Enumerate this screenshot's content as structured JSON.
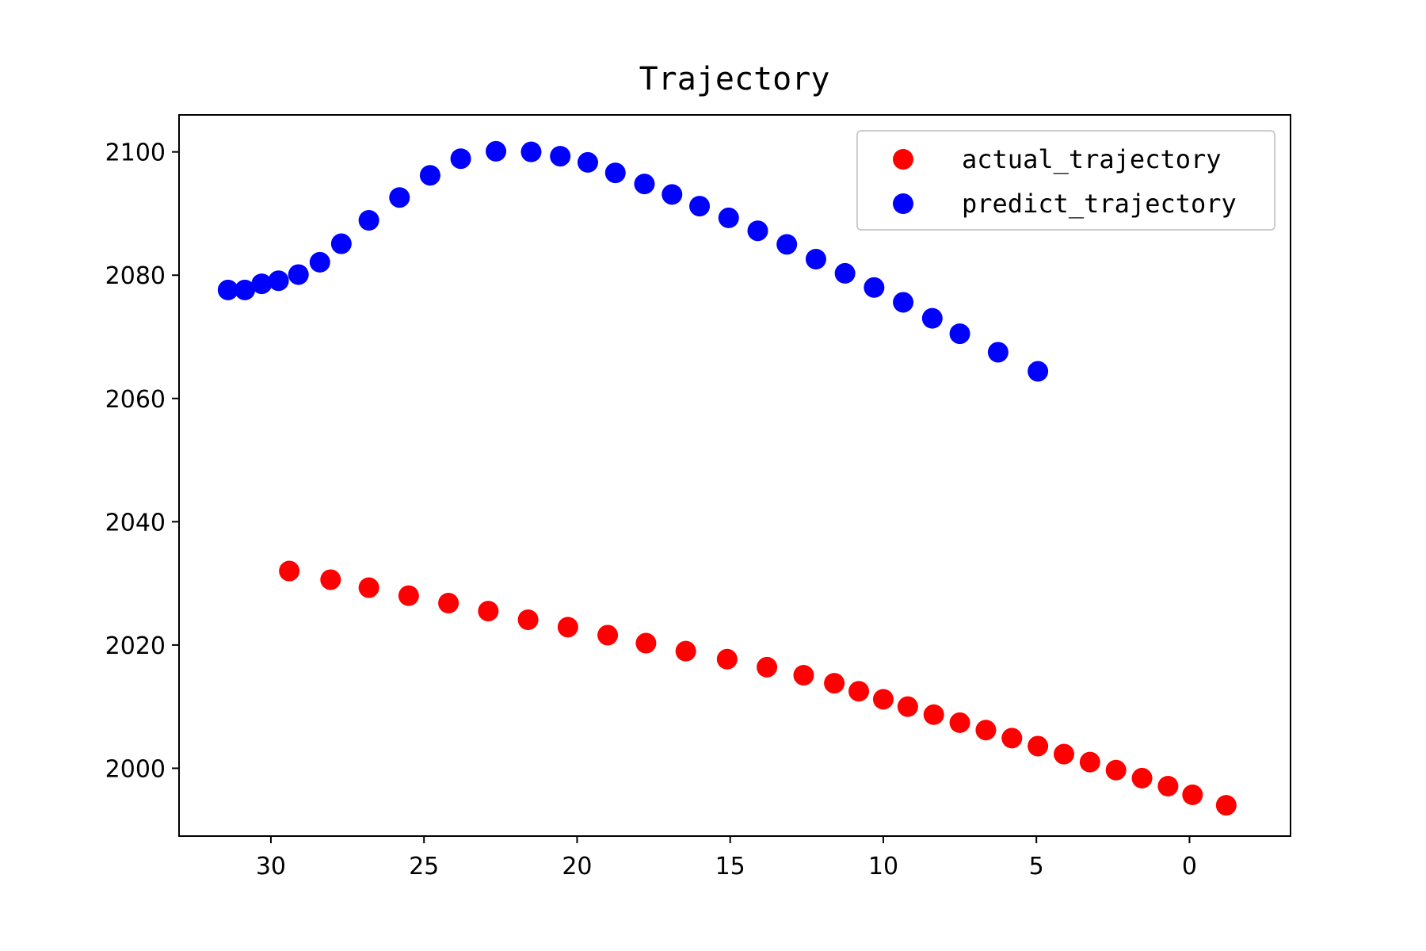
{
  "chart_data": {
    "type": "scatter",
    "title": "Trajectory",
    "xlabel": "",
    "ylabel": "",
    "x_inverted": true,
    "xlim": [
      -3.3,
      33.0
    ],
    "ylim": [
      1989.0,
      2106.0
    ],
    "xticks": [
      30,
      25,
      20,
      15,
      10,
      5,
      0
    ],
    "yticks": [
      2000,
      2020,
      2040,
      2060,
      2080,
      2100
    ],
    "grid": false,
    "legend_position": "top-right",
    "series": [
      {
        "name": "actual_trajectory",
        "color": "#ff0000",
        "x": [
          29.4,
          28.05,
          26.8,
          25.5,
          24.2,
          22.9,
          21.6,
          20.3,
          19.0,
          17.75,
          16.45,
          15.1,
          13.8,
          12.6,
          11.6,
          10.8,
          10.0,
          9.2,
          8.35,
          7.5,
          6.65,
          5.8,
          4.95,
          4.1,
          3.25,
          2.4,
          1.55,
          0.7,
          -0.1,
          -1.2
        ],
        "y": [
          2032.0,
          2030.6,
          2029.3,
          2028.0,
          2026.8,
          2025.5,
          2024.1,
          2022.9,
          2021.6,
          2020.3,
          2019.0,
          2017.7,
          2016.4,
          2015.1,
          2013.8,
          2012.5,
          2011.2,
          2010.0,
          2008.7,
          2007.4,
          2006.2,
          2004.9,
          2003.6,
          2002.3,
          2001.0,
          1999.7,
          1998.4,
          1997.1,
          1995.7,
          1994.0
        ]
      },
      {
        "name": "predict_trajectory",
        "color": "#0000ff",
        "x": [
          31.4,
          30.85,
          30.3,
          29.75,
          29.1,
          28.4,
          27.7,
          26.8,
          25.8,
          24.8,
          23.8,
          22.65,
          21.5,
          20.55,
          19.65,
          18.75,
          17.8,
          16.9,
          16.0,
          15.05,
          14.1,
          13.15,
          12.2,
          11.25,
          10.3,
          9.35,
          8.4,
          7.5,
          6.25,
          4.95
        ],
        "y": [
          2077.6,
          2077.6,
          2078.6,
          2079.1,
          2080.1,
          2082.1,
          2085.1,
          2088.9,
          2092.6,
          2096.2,
          2098.9,
          2100.1,
          2100.0,
          2099.3,
          2098.3,
          2096.6,
          2094.8,
          2093.1,
          2091.2,
          2089.3,
          2087.2,
          2085.0,
          2082.6,
          2080.3,
          2078.0,
          2075.6,
          2073.0,
          2070.5,
          2067.5,
          2064.4
        ]
      }
    ]
  }
}
